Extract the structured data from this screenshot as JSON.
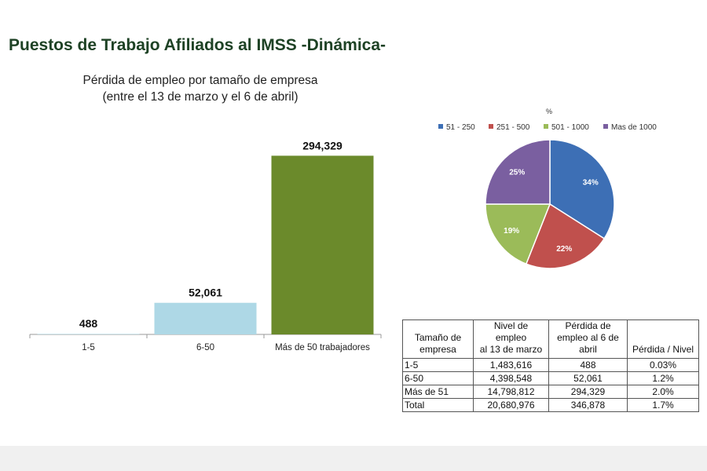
{
  "page": {
    "title": "Puestos de Trabajo Afiliados al IMSS -Dinámica-"
  },
  "chart_data": [
    {
      "type": "bar",
      "title_lines": [
        "Pérdida de empleo por tamaño de empresa",
        "(entre el 13 de marzo y el 6 de abril)"
      ],
      "categories": [
        "1-5",
        "6-50",
        "Más de 50 trabajadores"
      ],
      "values": [
        488,
        52061,
        294329
      ],
      "value_labels": [
        "488",
        "52,061",
        "294,329"
      ],
      "colors": [
        "#d0e8ef",
        "#aed8e6",
        "#6b8a2b"
      ],
      "ylim": [
        0,
        300000
      ],
      "grid": false,
      "legend": "none"
    },
    {
      "type": "pie",
      "title": "%",
      "categories": [
        "51 - 250",
        "251 - 500",
        "501 - 1000",
        "Mas de 1000"
      ],
      "values": [
        34,
        22,
        19,
        25
      ],
      "value_labels": [
        "34%",
        "22%",
        "19%",
        "25%"
      ],
      "colors": [
        "#3d6fb5",
        "#c0504d",
        "#9bbb59",
        "#7a5fa0"
      ],
      "legend": "top"
    }
  ],
  "table": {
    "headers": [
      [
        "Tamaño de",
        "empresa"
      ],
      [
        "Nivel de",
        "empleo",
        "al 13 de marzo"
      ],
      [
        "Pérdida de",
        "empleo al 6 de",
        "abril"
      ],
      [
        "Pérdida / Nivel"
      ]
    ],
    "rows": [
      [
        "1-5",
        "1,483,616",
        "488",
        "0.03%"
      ],
      [
        "6-50",
        "4,398,548",
        "52,061",
        "1.2%"
      ],
      [
        "Más de 51",
        "14,798,812",
        "294,329",
        "2.0%"
      ],
      [
        "Total",
        "20,680,976",
        "346,878",
        "1.7%"
      ]
    ]
  }
}
